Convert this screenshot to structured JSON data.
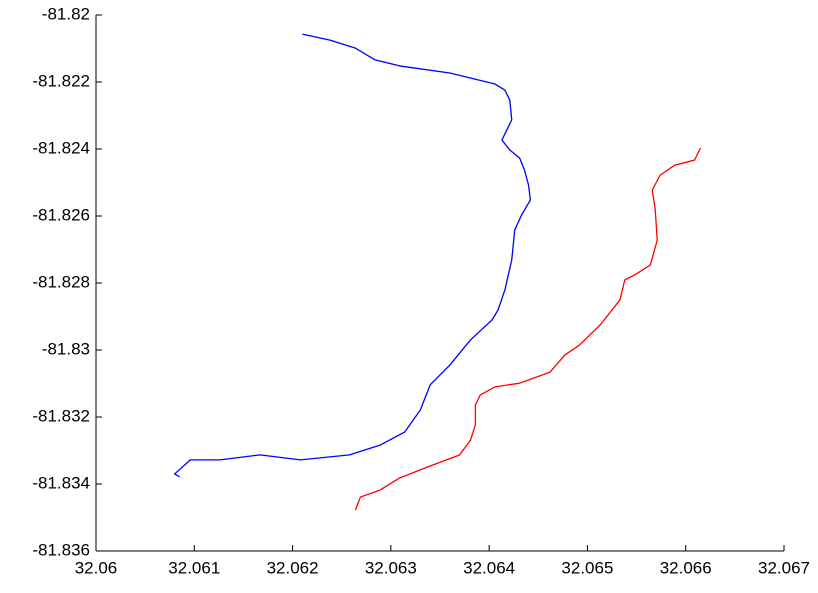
{
  "chart_data": {
    "type": "line",
    "xlim": [
      32.06,
      32.067
    ],
    "xticks": [
      32.06,
      32.061,
      32.062,
      32.063,
      32.064,
      32.065,
      32.066,
      32.067
    ],
    "ylim": [
      -81.836,
      -81.82
    ],
    "yticks": [
      -81.82,
      -81.822,
      -81.824,
      -81.826,
      -81.828,
      -81.83,
      -81.832,
      -81.834,
      -81.836
    ],
    "grid": false,
    "series": [
      {
        "color": "#0000ff",
        "x": [
          32.0621,
          32.06238,
          32.06264,
          32.06284,
          32.06309,
          32.0636,
          32.06406,
          32.06416,
          32.06421,
          32.06423,
          32.06413,
          32.06421,
          32.06431,
          32.06436,
          32.0644,
          32.06442,
          32.06433,
          32.06426,
          32.06423,
          32.06416,
          32.06409,
          32.06403,
          32.06381,
          32.0636,
          32.0634,
          32.0633,
          32.06314,
          32.06289,
          32.06258,
          32.06208,
          32.06167,
          32.06126,
          32.06096,
          32.0608,
          32.06085
        ],
        "values": [
          -81.82057,
          -81.82075,
          -81.82099,
          -81.82134,
          -81.82152,
          -81.82173,
          -81.82206,
          -81.82224,
          -81.82254,
          -81.82313,
          -81.82373,
          -81.82403,
          -81.82427,
          -81.82463,
          -81.82507,
          -81.82552,
          -81.82597,
          -81.82642,
          -81.82731,
          -81.82821,
          -81.82881,
          -81.8291,
          -81.8297,
          -81.83045,
          -81.83104,
          -81.83179,
          -81.83245,
          -81.83284,
          -81.83313,
          -81.83328,
          -81.83313,
          -81.83328,
          -81.83328,
          -81.8337,
          -81.83379
        ]
      },
      {
        "color": "#ff0000",
        "x": [
          32.06615,
          32.06609,
          32.06589,
          32.06574,
          32.06566,
          32.06569,
          32.06571,
          32.06564,
          32.06548,
          32.06538,
          32.06533,
          32.06513,
          32.06492,
          32.06477,
          32.06462,
          32.06431,
          32.06406,
          32.06391,
          32.06386,
          32.06386,
          32.06381,
          32.0637,
          32.06335,
          32.06309,
          32.06289,
          32.06269,
          32.06264
        ],
        "values": [
          -81.82397,
          -81.82433,
          -81.82448,
          -81.82478,
          -81.82522,
          -81.82582,
          -81.82672,
          -81.82746,
          -81.82776,
          -81.82791,
          -81.82851,
          -81.82925,
          -81.82985,
          -81.83015,
          -81.83066,
          -81.83099,
          -81.8311,
          -81.83134,
          -81.83164,
          -81.83224,
          -81.83269,
          -81.83313,
          -81.83352,
          -81.83382,
          -81.83418,
          -81.83439,
          -81.83478
        ]
      }
    ]
  }
}
